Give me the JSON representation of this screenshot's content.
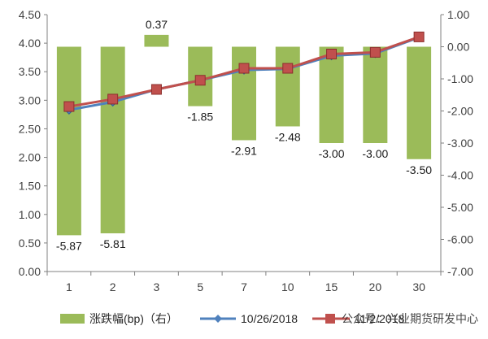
{
  "chart_data": {
    "type": "bar+line",
    "categories": [
      "1",
      "2",
      "3",
      "5",
      "7",
      "10",
      "15",
      "20",
      "30"
    ],
    "y_left": {
      "min": 0.0,
      "max": 4.5,
      "step": 0.5,
      "ticks": [
        "0.00",
        "0.50",
        "1.00",
        "1.50",
        "2.00",
        "2.50",
        "3.00",
        "3.50",
        "4.00",
        "4.50"
      ]
    },
    "y_right": {
      "min": -7.0,
      "max": 1.0,
      "step": 1.0,
      "ticks": [
        "-7.00",
        "-6.00",
        "-5.00",
        "-4.00",
        "-3.00",
        "-2.00",
        "-1.00",
        "0.00",
        "1.00"
      ]
    },
    "bars": {
      "name": "涨跌幅(bp)（右）",
      "axis": "right",
      "color": "#9bbb59",
      "values": [
        -5.87,
        -5.81,
        0.37,
        -1.85,
        -2.91,
        -2.48,
        -3.0,
        -3.0,
        -3.5
      ],
      "labels": [
        "-5.87",
        "-5.81",
        "0.37",
        "-1.85",
        "-2.91",
        "-2.48",
        "-3.00",
        "-3.00",
        "-3.50"
      ]
    },
    "series": [
      {
        "name": "10/26/2018",
        "axis": "left",
        "color": "#4f81bd",
        "marker": "diamond",
        "values": [
          2.83,
          2.97,
          3.19,
          3.35,
          3.53,
          3.55,
          3.78,
          3.82,
          4.1
        ]
      },
      {
        "name": "11/2/2018",
        "axis": "left",
        "color": "#c0504d",
        "marker": "square",
        "values": [
          2.89,
          3.02,
          3.19,
          3.35,
          3.56,
          3.56,
          3.81,
          3.84,
          4.11
        ]
      }
    ],
    "grid": false,
    "legend": "bottom"
  },
  "watermark": "公众号：兴业期货研发中心"
}
